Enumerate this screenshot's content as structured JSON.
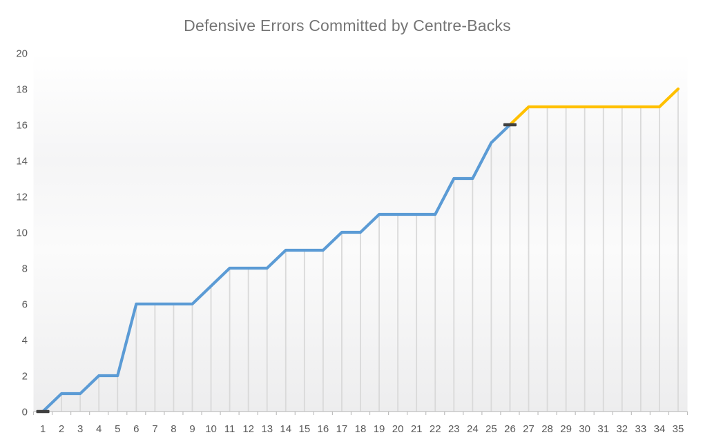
{
  "title": "Defensive Errors Committed by Centre-Backs",
  "chart_data": {
    "type": "line",
    "title": "Defensive Errors Committed by Centre-Backs",
    "xlabel": "",
    "ylabel": "",
    "x_categories": [
      1,
      2,
      3,
      4,
      5,
      6,
      7,
      8,
      9,
      10,
      11,
      12,
      13,
      14,
      15,
      16,
      17,
      18,
      19,
      20,
      21,
      22,
      23,
      24,
      25,
      26,
      27,
      28,
      29,
      30,
      31,
      32,
      33,
      34,
      35
    ],
    "y_ticks": [
      0,
      2,
      4,
      6,
      8,
      10,
      12,
      14,
      16,
      18,
      20
    ],
    "ylim": [
      0,
      20
    ],
    "series": [
      {
        "name": "blue-segment",
        "color": "#5B9BD5",
        "start_x": 1,
        "values": [
          0,
          1,
          1,
          2,
          2,
          6,
          6,
          6,
          6,
          7,
          8,
          8,
          8,
          9,
          9,
          9,
          10,
          10,
          11,
          11,
          11,
          11,
          13,
          13,
          15,
          16
        ]
      },
      {
        "name": "yellow-segment",
        "color": "#FFC000",
        "start_x": 26,
        "values": [
          16,
          17,
          17,
          17,
          17,
          17,
          17,
          17,
          17,
          18
        ]
      }
    ],
    "markers": {
      "shape": "dash",
      "color": "#404040",
      "points": [
        [
          1,
          0
        ],
        [
          26,
          16
        ]
      ]
    },
    "legend": "none",
    "grid": "vertical-drop-lines",
    "style": {
      "drop_line_color": "#D9D9D9",
      "axis_line_color": "#BFBFBF",
      "axis_label_color": "#595959",
      "title_color": "#757575",
      "plot_gradient_top": "#ffffff",
      "plot_gradient_mid1": "#f5f5f6",
      "plot_gradient_mid2": "#fbfbfb",
      "plot_gradient_bottom": "#ededee"
    }
  }
}
